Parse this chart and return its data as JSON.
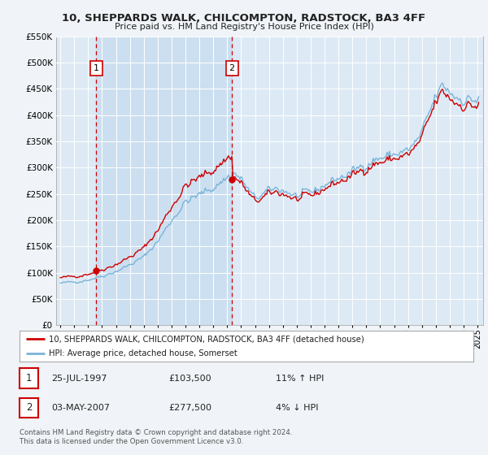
{
  "title": "10, SHEPPARDS WALK, CHILCOMPTON, RADSTOCK, BA3 4FF",
  "subtitle": "Price paid vs. HM Land Registry's House Price Index (HPI)",
  "legend_line1": "10, SHEPPARDS WALK, CHILCOMPTON, RADSTOCK, BA3 4FF (detached house)",
  "legend_line2": "HPI: Average price, detached house, Somerset",
  "annotation1_label": "1",
  "annotation1_date": "25-JUL-1997",
  "annotation1_price": "£103,500",
  "annotation1_hpi": "11% ↑ HPI",
  "annotation2_label": "2",
  "annotation2_date": "03-MAY-2007",
  "annotation2_price": "£277,500",
  "annotation2_hpi": "4% ↓ HPI",
  "footer": "Contains HM Land Registry data © Crown copyright and database right 2024.\nThis data is licensed under the Open Government Licence v3.0.",
  "sale1_x": 1997.573,
  "sale1_y": 103500,
  "sale2_x": 2007.336,
  "sale2_y": 277500,
  "hpi_color": "#7ab4d8",
  "price_color": "#cc0000",
  "bg_color": "#f0f4f8",
  "plot_bg": "#ddeaf5",
  "shade_color": "#ccdff0",
  "grid_color": "#c8d8e8",
  "ylim_top": 550000,
  "xlim_start": 1994.7,
  "xlim_end": 2025.4,
  "yticks": [
    0,
    50000,
    100000,
    150000,
    200000,
    250000,
    300000,
    350000,
    400000,
    450000,
    500000,
    550000
  ]
}
